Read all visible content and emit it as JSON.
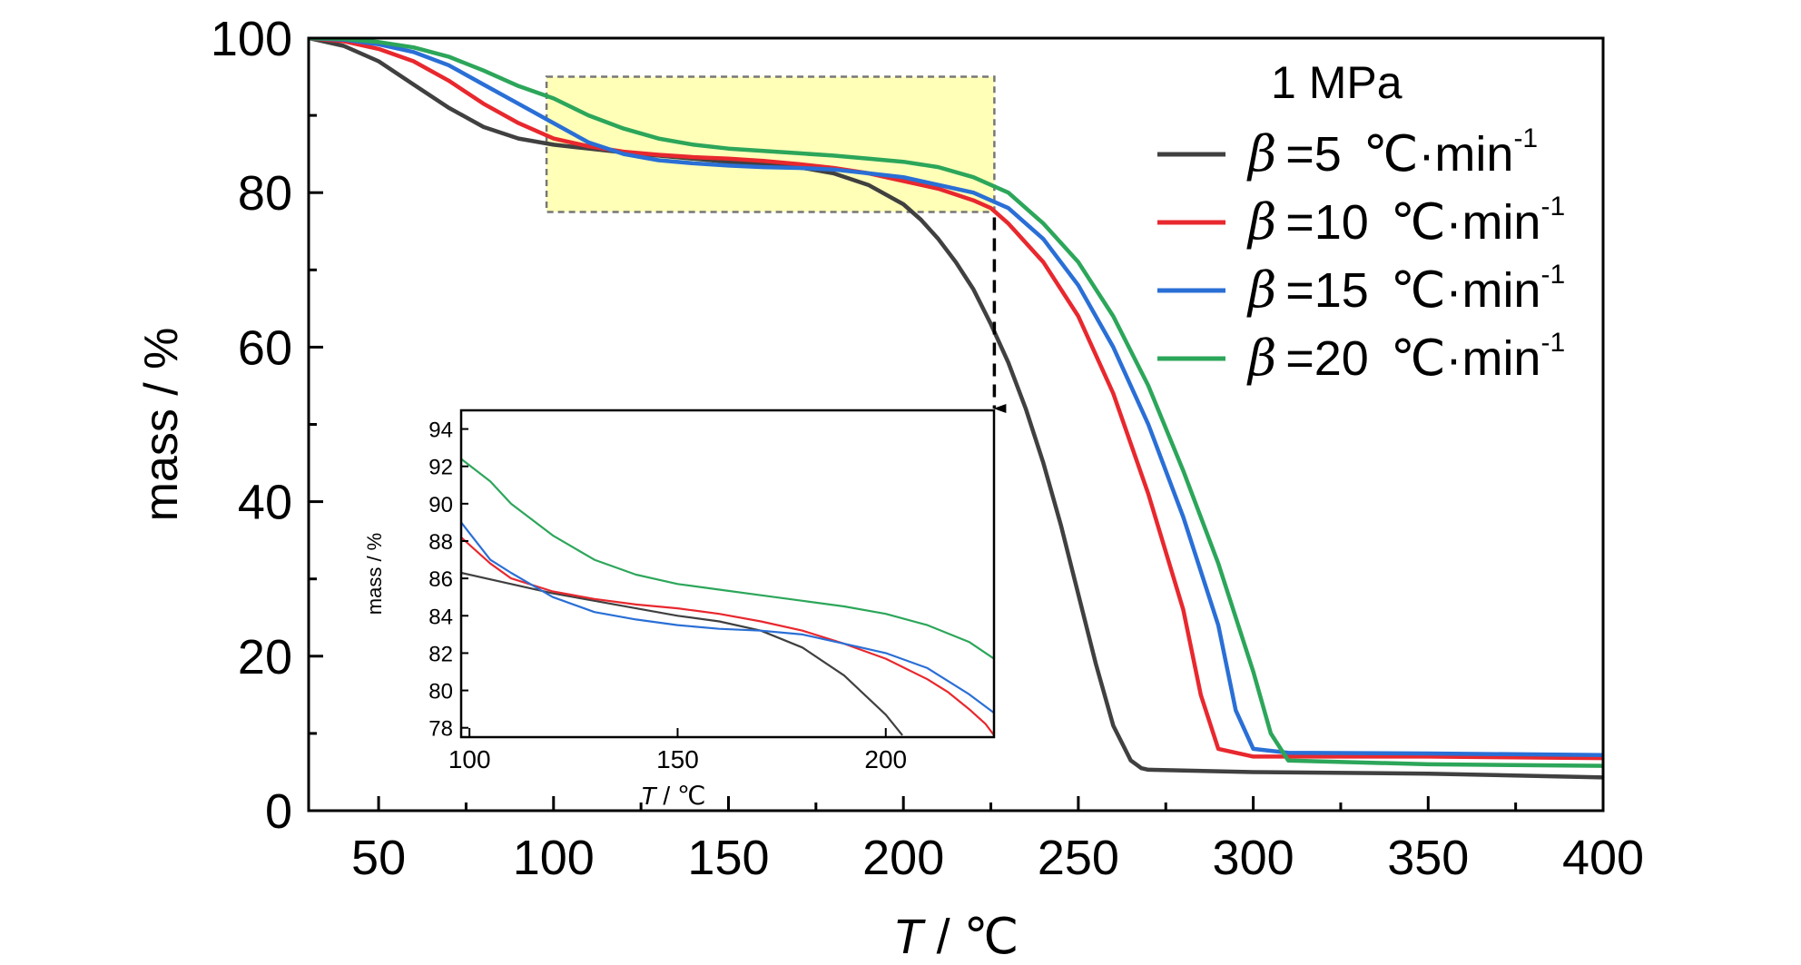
{
  "chart_data": [
    {
      "type": "line",
      "role": "main",
      "xlabel_italic": "T",
      "xlabel_rest": " / ℃",
      "ylabel": "mass / %",
      "xlim": [
        30,
        400
      ],
      "ylim": [
        0,
        100
      ],
      "xticks": [
        50,
        100,
        150,
        200,
        250,
        300,
        350,
        400
      ],
      "yticks": [
        0,
        20,
        40,
        60,
        80,
        100
      ],
      "legend": {
        "title": "1 MPa",
        "position": "top-right",
        "beta_symbol": "β",
        "unit": "℃·min",
        "exponent": "-1",
        "entries": [
          "=5",
          "=10",
          "=15",
          "=20"
        ]
      },
      "colors": [
        "#404040",
        "#e8282e",
        "#2a6fd6",
        "#2ca65a"
      ],
      "highlight_box": {
        "xrange": [
          98,
          226
        ],
        "yrange": [
          77.5,
          95
        ],
        "color": "#ffffb8"
      },
      "series": [
        {
          "name": "β =5 ℃·min-1",
          "x": [
            30,
            40,
            50,
            60,
            70,
            80,
            90,
            100,
            110,
            120,
            130,
            140,
            150,
            160,
            170,
            180,
            190,
            200,
            205,
            210,
            215,
            220,
            225,
            230,
            235,
            240,
            245,
            250,
            255,
            260,
            265,
            268,
            270,
            280,
            300,
            350,
            400
          ],
          "y": [
            100,
            99.0,
            97.0,
            94.0,
            91.0,
            88.5,
            87.0,
            86.2,
            85.7,
            85.2,
            84.8,
            84.4,
            84.0,
            83.7,
            83.3,
            82.5,
            81.0,
            78.5,
            76.5,
            74.0,
            71.0,
            67.5,
            63.0,
            58.0,
            52.0,
            45.0,
            37.0,
            28.0,
            19.0,
            11.0,
            6.5,
            5.5,
            5.3,
            5.2,
            5.0,
            4.8,
            4.3
          ]
        },
        {
          "name": "β =10 ℃·min-1",
          "x": [
            30,
            40,
            50,
            60,
            70,
            80,
            90,
            100,
            110,
            120,
            130,
            140,
            150,
            160,
            170,
            180,
            190,
            200,
            210,
            220,
            225,
            230,
            240,
            250,
            260,
            270,
            280,
            285,
            290,
            300,
            350,
            400
          ],
          "y": [
            100,
            99.6,
            98.6,
            97.0,
            94.5,
            91.5,
            89.0,
            87.0,
            86.0,
            85.3,
            84.9,
            84.6,
            84.4,
            84.1,
            83.7,
            83.2,
            82.5,
            81.5,
            80.5,
            79.0,
            78.0,
            76.0,
            71.0,
            64.0,
            54.0,
            41.0,
            26.0,
            15.0,
            8.0,
            7.0,
            7.0,
            6.8
          ]
        },
        {
          "name": "β =15 ℃·min-1",
          "x": [
            30,
            40,
            50,
            60,
            70,
            80,
            90,
            100,
            110,
            120,
            130,
            140,
            150,
            160,
            170,
            180,
            190,
            200,
            210,
            220,
            230,
            240,
            250,
            260,
            270,
            280,
            290,
            295,
            300,
            310,
            350,
            400
          ],
          "y": [
            100,
            99.8,
            99.2,
            98.2,
            96.5,
            94.0,
            91.5,
            89.0,
            86.5,
            85.0,
            84.2,
            83.8,
            83.5,
            83.3,
            83.2,
            83.0,
            82.5,
            82.0,
            81.0,
            80.0,
            78.0,
            74.0,
            68.0,
            60.0,
            50.0,
            38.0,
            24.0,
            13.0,
            8.0,
            7.5,
            7.4,
            7.2
          ]
        },
        {
          "name": "β =20 ℃·min-1",
          "x": [
            30,
            40,
            50,
            60,
            70,
            80,
            90,
            100,
            110,
            120,
            130,
            140,
            150,
            160,
            170,
            180,
            190,
            200,
            210,
            220,
            230,
            240,
            250,
            260,
            270,
            280,
            290,
            300,
            305,
            310,
            350,
            400
          ],
          "y": [
            100,
            99.9,
            99.5,
            98.8,
            97.6,
            95.8,
            93.8,
            92.2,
            90.0,
            88.3,
            87.0,
            86.2,
            85.7,
            85.4,
            85.1,
            84.8,
            84.4,
            84.0,
            83.3,
            82.0,
            80.0,
            76.0,
            71.0,
            64.0,
            55.0,
            44.0,
            32.0,
            18.0,
            10.0,
            6.5,
            6.0,
            5.8
          ]
        }
      ]
    },
    {
      "type": "line",
      "role": "inset",
      "xlabel_italic": "T",
      "xlabel_rest": " / ℃",
      "ylabel": "mass / %",
      "xlim": [
        98,
        226
      ],
      "ylim": [
        77.5,
        95
      ],
      "xticks": [
        100,
        150,
        200
      ],
      "yticks": [
        78,
        80,
        82,
        84,
        86,
        88,
        90,
        92,
        94
      ],
      "series": [
        {
          "name": "β =5 ℃·min-1",
          "x": [
            98,
            110,
            120,
            130,
            140,
            150,
            160,
            170,
            180,
            190,
            200,
            204
          ],
          "y": [
            86.3,
            85.7,
            85.2,
            84.8,
            84.4,
            84.0,
            83.7,
            83.2,
            82.3,
            80.8,
            78.7,
            77.6
          ]
        },
        {
          "name": "β =10 ℃·min-1",
          "x": [
            98,
            105,
            110,
            120,
            130,
            140,
            150,
            160,
            170,
            180,
            190,
            200,
            210,
            215,
            220,
            224,
            226
          ],
          "y": [
            88.2,
            86.8,
            86.0,
            85.3,
            84.9,
            84.6,
            84.4,
            84.1,
            83.7,
            83.2,
            82.5,
            81.7,
            80.6,
            79.9,
            79.0,
            78.2,
            77.6
          ]
        },
        {
          "name": "β =15 ℃·min-1",
          "x": [
            98,
            105,
            110,
            120,
            130,
            140,
            150,
            160,
            170,
            180,
            190,
            200,
            210,
            220,
            226
          ],
          "y": [
            89.0,
            87.0,
            86.3,
            85.0,
            84.2,
            83.8,
            83.5,
            83.3,
            83.2,
            83.0,
            82.5,
            82.0,
            81.2,
            79.8,
            78.8
          ]
        },
        {
          "name": "β =20 ℃·min-1",
          "x": [
            98,
            105,
            110,
            120,
            130,
            140,
            150,
            160,
            170,
            180,
            190,
            200,
            210,
            220,
            226
          ],
          "y": [
            92.4,
            91.2,
            90.0,
            88.3,
            87.0,
            86.2,
            85.7,
            85.4,
            85.1,
            84.8,
            84.5,
            84.1,
            83.5,
            82.6,
            81.7
          ]
        }
      ]
    }
  ]
}
